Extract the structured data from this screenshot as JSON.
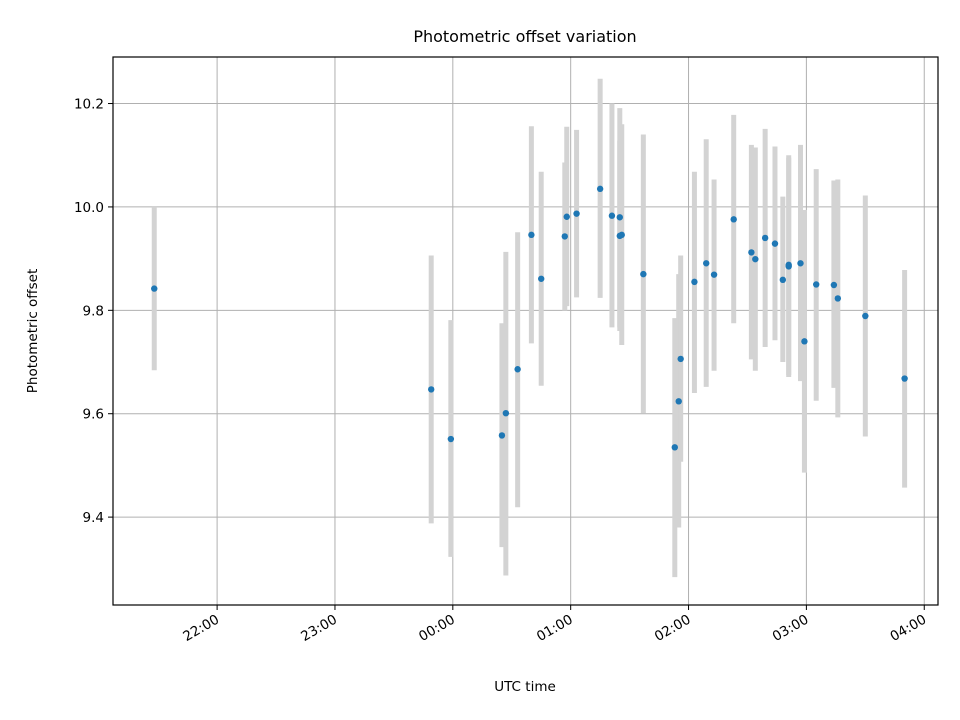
{
  "chart_data": {
    "type": "scatter",
    "title": "Photometric offset variation",
    "xlabel": "UTC time",
    "ylabel": "Photometric offset",
    "x_unit": "UTC time (HH:MM)",
    "xlim": [
      "21:07",
      "04:07"
    ],
    "ylim": [
      9.23,
      10.29
    ],
    "grid": true,
    "x_ticks": [
      "22:00",
      "23:00",
      "00:00",
      "01:00",
      "02:00",
      "03:00",
      "04:00"
    ],
    "y_ticks": [
      9.4,
      9.6,
      9.8,
      10.0,
      10.2
    ],
    "y_tick_labels": [
      "9.4",
      "9.6",
      "9.8",
      "10.0",
      "10.2"
    ],
    "marker_color": "#1f77b4",
    "errorbar_color": "#d3d3d3",
    "points": [
      {
        "x": "21:28",
        "y": 9.842,
        "yerr_low": 9.684,
        "yerr_high": 10.0
      },
      {
        "x": "23:49",
        "y": 9.647,
        "yerr_low": 9.388,
        "yerr_high": 9.906
      },
      {
        "x": "23:59",
        "y": 9.551,
        "yerr_low": 9.323,
        "yerr_high": 9.781
      },
      {
        "x": "00:25",
        "y": 9.558,
        "yerr_low": 9.342,
        "yerr_high": 9.775
      },
      {
        "x": "00:27",
        "y": 9.601,
        "yerr_low": 9.287,
        "yerr_high": 9.913
      },
      {
        "x": "00:33",
        "y": 9.686,
        "yerr_low": 9.419,
        "yerr_high": 9.951
      },
      {
        "x": "00:40",
        "y": 9.946,
        "yerr_low": 9.736,
        "yerr_high": 10.156
      },
      {
        "x": "00:45",
        "y": 9.861,
        "yerr_low": 9.654,
        "yerr_high": 10.068
      },
      {
        "x": "00:57",
        "y": 9.943,
        "yerr_low": 9.8,
        "yerr_high": 10.086
      },
      {
        "x": "00:58",
        "y": 9.981,
        "yerr_low": 9.808,
        "yerr_high": 10.155
      },
      {
        "x": "01:03",
        "y": 9.987,
        "yerr_low": 9.825,
        "yerr_high": 10.149
      },
      {
        "x": "01:15",
        "y": 10.035,
        "yerr_low": 9.824,
        "yerr_high": 10.248
      },
      {
        "x": "01:21",
        "y": 9.983,
        "yerr_low": 9.767,
        "yerr_high": 10.2
      },
      {
        "x": "01:25",
        "y": 9.944,
        "yerr_low": 9.76,
        "yerr_high": 10.128
      },
      {
        "x": "01:25",
        "y": 9.98,
        "yerr_low": 9.767,
        "yerr_high": 10.191
      },
      {
        "x": "01:26",
        "y": 9.946,
        "yerr_low": 9.733,
        "yerr_high": 10.16
      },
      {
        "x": "01:37",
        "y": 9.87,
        "yerr_low": 9.601,
        "yerr_high": 10.14
      },
      {
        "x": "01:53",
        "y": 9.535,
        "yerr_low": 9.284,
        "yerr_high": 9.785
      },
      {
        "x": "01:55",
        "y": 9.624,
        "yerr_low": 9.38,
        "yerr_high": 9.87
      },
      {
        "x": "01:56",
        "y": 9.706,
        "yerr_low": 9.507,
        "yerr_high": 9.906
      },
      {
        "x": "02:03",
        "y": 9.855,
        "yerr_low": 9.64,
        "yerr_high": 10.068
      },
      {
        "x": "02:09",
        "y": 9.891,
        "yerr_low": 9.652,
        "yerr_high": 10.131
      },
      {
        "x": "02:13",
        "y": 9.869,
        "yerr_low": 9.683,
        "yerr_high": 10.053
      },
      {
        "x": "02:23",
        "y": 9.976,
        "yerr_low": 9.775,
        "yerr_high": 10.178
      },
      {
        "x": "02:32",
        "y": 9.912,
        "yerr_low": 9.705,
        "yerr_high": 10.12
      },
      {
        "x": "02:34",
        "y": 9.899,
        "yerr_low": 9.683,
        "yerr_high": 10.115
      },
      {
        "x": "02:39",
        "y": 9.94,
        "yerr_low": 9.729,
        "yerr_high": 10.151
      },
      {
        "x": "02:44",
        "y": 9.929,
        "yerr_low": 9.742,
        "yerr_high": 10.117
      },
      {
        "x": "02:48",
        "y": 9.859,
        "yerr_low": 9.7,
        "yerr_high": 10.02
      },
      {
        "x": "02:51",
        "y": 9.885,
        "yerr_low": 9.671,
        "yerr_high": 10.095
      },
      {
        "x": "02:51",
        "y": 9.888,
        "yerr_low": 9.675,
        "yerr_high": 10.1
      },
      {
        "x": "02:57",
        "y": 9.891,
        "yerr_low": 9.663,
        "yerr_high": 10.12
      },
      {
        "x": "02:59",
        "y": 9.74,
        "yerr_low": 9.486,
        "yerr_high": 9.994
      },
      {
        "x": "03:05",
        "y": 9.85,
        "yerr_low": 9.625,
        "yerr_high": 10.073
      },
      {
        "x": "03:14",
        "y": 9.849,
        "yerr_low": 9.65,
        "yerr_high": 10.051
      },
      {
        "x": "03:16",
        "y": 9.823,
        "yerr_low": 9.593,
        "yerr_high": 10.053
      },
      {
        "x": "03:30",
        "y": 9.789,
        "yerr_low": 9.556,
        "yerr_high": 10.022
      },
      {
        "x": "03:50",
        "y": 9.668,
        "yerr_low": 9.457,
        "yerr_high": 9.878
      }
    ]
  }
}
